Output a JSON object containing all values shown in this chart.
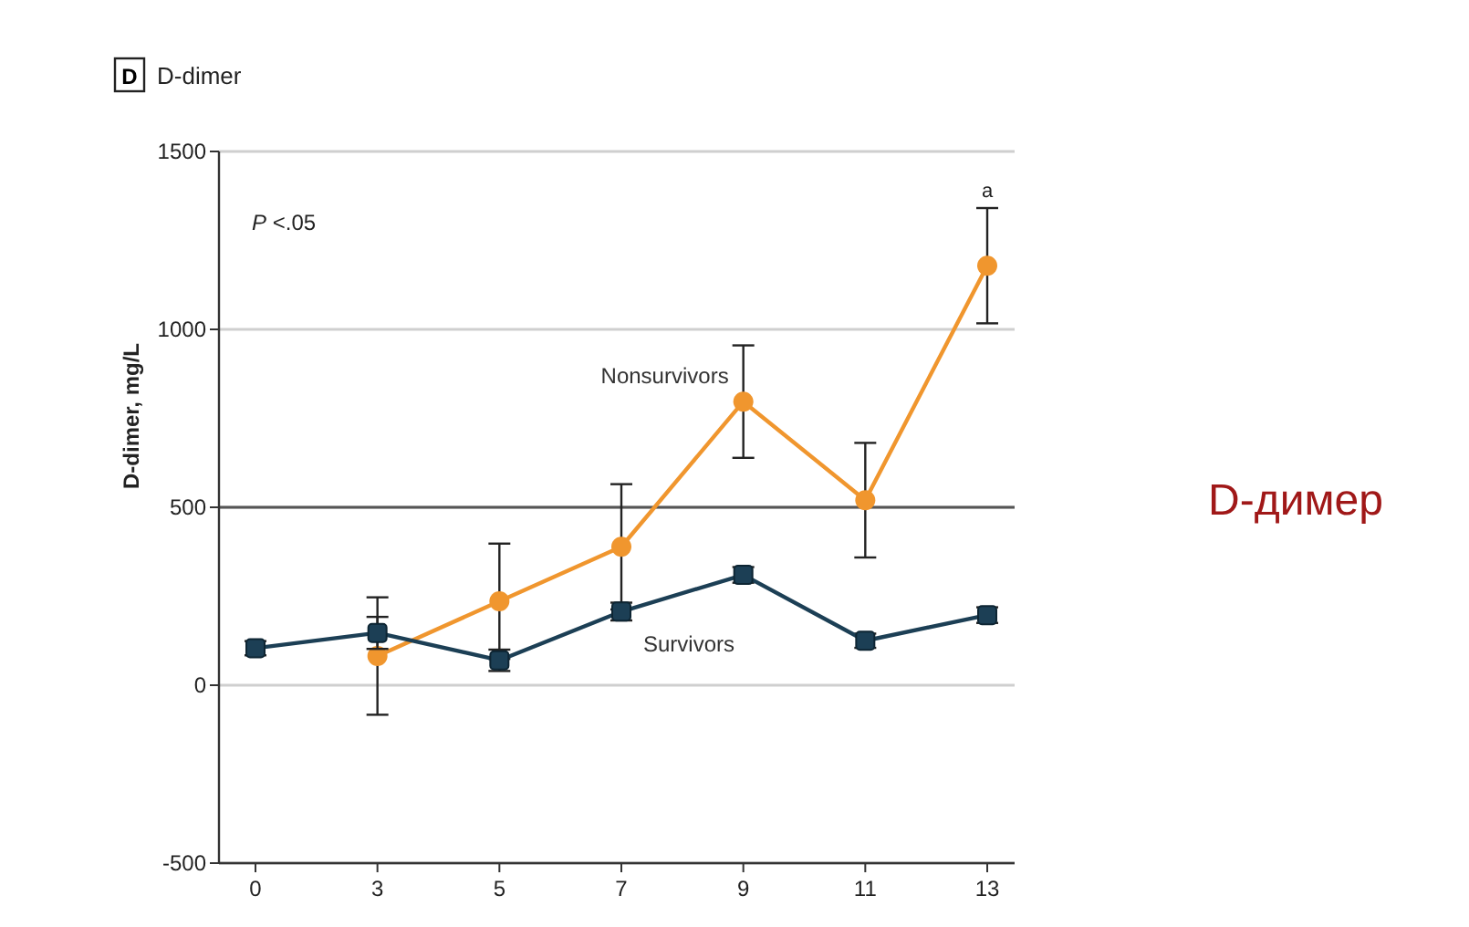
{
  "chart_data": {
    "type": "line",
    "title": "D-dimer",
    "ylabel": "D-dimer, mg/L",
    "categories": [
      "0",
      "3",
      "5",
      "7",
      "9",
      "11",
      "13"
    ],
    "series": [
      {
        "name": "Nonsurvivors",
        "color": "#f0962e",
        "marker": "circle",
        "values": [
          null,
          82,
          236,
          389,
          797,
          520,
          1179
        ],
        "errors": [
          null,
          165,
          162,
          176,
          158,
          161,
          162
        ]
      },
      {
        "name": "Survivors",
        "color": "#1c3f55",
        "marker": "square",
        "values": [
          104,
          147,
          70,
          207,
          310,
          125,
          197
        ],
        "errors": [
          20,
          45,
          30,
          25,
          22,
          20,
          22
        ]
      }
    ],
    "ylim": [
      -500,
      1500
    ],
    "yticks": [
      -500,
      0,
      500,
      1000,
      1500
    ],
    "grid": "y",
    "ref_lines": [
      {
        "axis": "y",
        "value": 500,
        "color": "#555555"
      }
    ],
    "annotations": [
      "D",
      "P <.05",
      {
        "text": "a",
        "x": "13",
        "y": 1341
      },
      "D-димер"
    ]
  }
}
